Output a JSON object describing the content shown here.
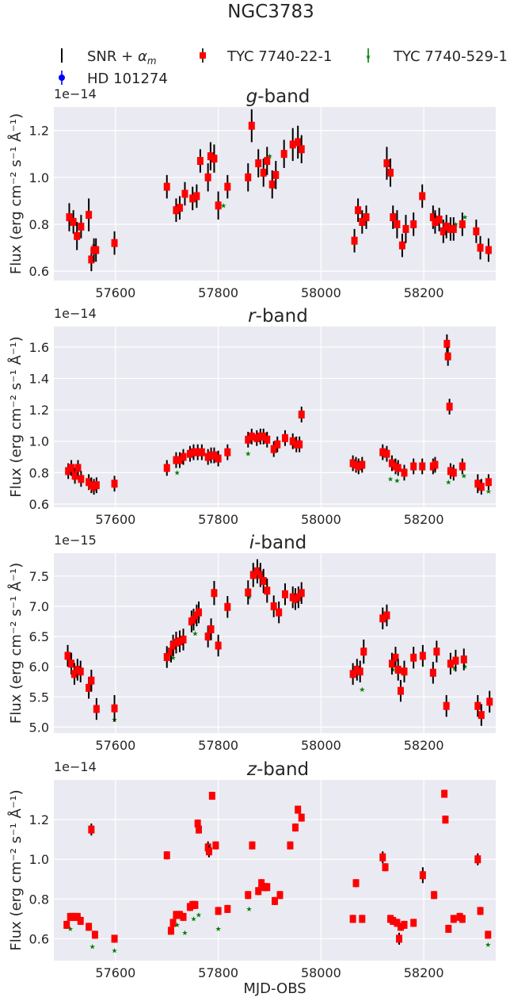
{
  "figure": {
    "title": "NGC3783",
    "xlabel": "MJD-OBS",
    "legend": [
      {
        "label": "SNR + α_m",
        "color": "#000000",
        "marker": "errorbar-line"
      },
      {
        "label": "TYC 7740-22-1",
        "color": "#ff0000",
        "marker": "square"
      },
      {
        "label": "TYC 7740-529-1",
        "color": "#008000",
        "marker": "star"
      },
      {
        "label": "HD 101274",
        "color": "#0000ff",
        "marker": "circle"
      }
    ],
    "colors": {
      "background": "#eaeaf2",
      "grid": "#ffffff",
      "snr": "#000000",
      "tyc22": "#ff0000",
      "tyc529": "#008000"
    }
  },
  "chart_data": [
    {
      "type": "scatter",
      "band": "g",
      "title": "g-band",
      "ylabel": "Flux (erg cm⁻² s⁻¹ Å⁻¹)",
      "exponent": "1e−14",
      "xlim": [
        57480,
        58340
      ],
      "ylim": [
        0.56,
        1.3
      ],
      "xticks": [
        57600,
        57800,
        58000,
        58200
      ],
      "yticks": [
        0.6,
        0.8,
        1.0,
        1.2
      ],
      "grid": true,
      "x": [
        57510,
        57518,
        57525,
        57533,
        57548,
        57553,
        57558,
        57562,
        57598,
        57700,
        57718,
        57725,
        57735,
        57750,
        57758,
        57765,
        57780,
        57785,
        57792,
        57800,
        57818,
        57858,
        57865,
        57878,
        57888,
        57895,
        57905,
        57912,
        57928,
        57945,
        57955,
        57962,
        58065,
        58072,
        58080,
        58088,
        58128,
        58135,
        58140,
        58148,
        58158,
        58165,
        58180,
        58197,
        58218,
        58222,
        58230,
        58238,
        58244,
        58252,
        58258,
        58275,
        58302,
        58310,
        58326
      ],
      "y": [
        0.83,
        0.81,
        0.75,
        0.79,
        0.84,
        0.65,
        0.69,
        0.69,
        0.72,
        0.96,
        0.86,
        0.87,
        0.93,
        0.91,
        0.92,
        1.07,
        1.0,
        1.09,
        1.08,
        0.88,
        0.96,
        1.0,
        1.22,
        1.06,
        1.02,
        1.07,
        0.97,
        1.01,
        1.1,
        1.14,
        1.15,
        1.12,
        0.73,
        0.86,
        0.81,
        0.83,
        1.06,
        1.02,
        0.83,
        0.8,
        0.71,
        0.78,
        0.8,
        0.92,
        0.83,
        0.81,
        0.82,
        0.77,
        0.79,
        0.78,
        0.78,
        0.8,
        0.77,
        0.7,
        0.69
      ],
      "yerr": [
        0.06,
        0.05,
        0.06,
        0.05,
        0.07,
        0.05,
        0.05,
        0.05,
        0.05,
        0.05,
        0.05,
        0.05,
        0.05,
        0.05,
        0.05,
        0.05,
        0.06,
        0.06,
        0.06,
        0.06,
        0.05,
        0.06,
        0.07,
        0.06,
        0.06,
        0.06,
        0.06,
        0.06,
        0.06,
        0.07,
        0.07,
        0.06,
        0.05,
        0.05,
        0.05,
        0.05,
        0.07,
        0.06,
        0.05,
        0.06,
        0.05,
        0.06,
        0.05,
        0.05,
        0.05,
        0.05,
        0.05,
        0.05,
        0.05,
        0.05,
        0.05,
        0.05,
        0.05,
        0.05,
        0.05
      ],
      "green": [
        [
          57558,
          0.71
        ],
        [
          57722,
          0.87
        ],
        [
          57810,
          0.88
        ],
        [
          57900,
          1.09
        ],
        [
          58142,
          0.84
        ],
        [
          58242,
          0.8
        ],
        [
          58262,
          0.8
        ],
        [
          58280,
          0.83
        ]
      ]
    },
    {
      "type": "scatter",
      "band": "r",
      "title": "r-band",
      "ylabel": "Flux (erg cm⁻² s⁻¹ Å⁻¹)",
      "exponent": "1e−14",
      "xlim": [
        57480,
        58340
      ],
      "ylim": [
        0.58,
        1.73
      ],
      "xticks": [
        57600,
        57800,
        58000,
        58200
      ],
      "yticks": [
        0.6,
        0.8,
        1.0,
        1.2,
        1.4,
        1.6
      ],
      "grid": true,
      "x": [
        57508,
        57514,
        57521,
        57527,
        57533,
        57548,
        57553,
        57558,
        57563,
        57598,
        57700,
        57718,
        57725,
        57732,
        57745,
        57752,
        57760,
        57768,
        57780,
        57786,
        57792,
        57800,
        57818,
        57858,
        57865,
        57875,
        57882,
        57888,
        57895,
        57908,
        57915,
        57930,
        57945,
        57952,
        57958,
        57962,
        58062,
        58068,
        58073,
        58080,
        58120,
        58128,
        58138,
        58145,
        58150,
        58162,
        58180,
        58197,
        58218,
        58222,
        58245,
        58247,
        58250,
        58252,
        58258,
        58275,
        58305,
        58312,
        58326
      ],
      "y": [
        0.81,
        0.83,
        0.78,
        0.83,
        0.76,
        0.74,
        0.72,
        0.71,
        0.72,
        0.73,
        0.83,
        0.88,
        0.88,
        0.9,
        0.92,
        0.93,
        0.93,
        0.93,
        0.9,
        0.91,
        0.91,
        0.89,
        0.93,
        1.01,
        1.03,
        1.02,
        1.03,
        1.03,
        1.01,
        0.95,
        0.98,
        1.02,
        1.0,
        0.98,
        0.98,
        1.17,
        0.86,
        0.85,
        0.84,
        0.85,
        0.93,
        0.92,
        0.86,
        0.84,
        0.83,
        0.8,
        0.84,
        0.84,
        0.84,
        0.85,
        1.62,
        1.54,
        1.22,
        0.81,
        0.8,
        0.84,
        0.73,
        0.71,
        0.74
      ],
      "yerr": [
        0.05,
        0.05,
        0.05,
        0.05,
        0.05,
        0.05,
        0.05,
        0.05,
        0.05,
        0.05,
        0.05,
        0.05,
        0.05,
        0.05,
        0.05,
        0.05,
        0.05,
        0.05,
        0.05,
        0.05,
        0.05,
        0.05,
        0.05,
        0.05,
        0.05,
        0.05,
        0.05,
        0.05,
        0.05,
        0.05,
        0.05,
        0.05,
        0.05,
        0.05,
        0.05,
        0.05,
        0.05,
        0.05,
        0.05,
        0.05,
        0.05,
        0.05,
        0.05,
        0.05,
        0.05,
        0.05,
        0.05,
        0.05,
        0.05,
        0.05,
        0.06,
        0.06,
        0.05,
        0.05,
        0.05,
        0.05,
        0.06,
        0.05,
        0.05
      ],
      "green": [
        [
          57556,
          0.69
        ],
        [
          57720,
          0.8
        ],
        [
          57858,
          0.92
        ],
        [
          58135,
          0.76
        ],
        [
          58148,
          0.75
        ],
        [
          58248,
          0.74
        ],
        [
          58278,
          0.78
        ],
        [
          58326,
          0.68
        ]
      ]
    },
    {
      "type": "scatter",
      "band": "i",
      "title": "i-band",
      "ylabel": "Flux (erg cm⁻² s⁻¹ Å⁻¹)",
      "exponent": "1e−15",
      "xlim": [
        57480,
        58340
      ],
      "ylim": [
        4.9,
        7.88
      ],
      "xticks": [
        57600,
        57800,
        58000,
        58200
      ],
      "yticks": [
        5.0,
        5.5,
        6.0,
        6.5,
        7.0,
        7.5
      ],
      "grid": true,
      "x": [
        57507,
        57514,
        57520,
        57526,
        57532,
        57548,
        57553,
        57563,
        57598,
        57700,
        57708,
        57712,
        57718,
        57725,
        57732,
        57748,
        57752,
        57758,
        57762,
        57780,
        57786,
        57792,
        57800,
        57818,
        57858,
        57868,
        57876,
        57882,
        57888,
        57895,
        57908,
        57918,
        57930,
        57945,
        57950,
        57956,
        57962,
        58062,
        58070,
        58076,
        58083,
        58120,
        58128,
        58138,
        58145,
        58150,
        58155,
        58162,
        58180,
        58198,
        58218,
        58225,
        58244,
        58252,
        58262,
        58278,
        58305,
        58312,
        58328
      ],
      "y": [
        6.18,
        6.05,
        5.88,
        5.95,
        5.92,
        5.65,
        5.77,
        5.3,
        5.31,
        6.16,
        6.25,
        6.35,
        6.4,
        6.42,
        6.45,
        6.75,
        6.78,
        6.85,
        6.9,
        6.5,
        6.62,
        7.22,
        6.35,
        6.99,
        7.23,
        7.52,
        7.58,
        7.52,
        7.42,
        7.26,
        7.0,
        6.9,
        7.2,
        7.15,
        7.12,
        7.15,
        7.22,
        5.88,
        5.95,
        5.92,
        6.25,
        6.8,
        6.85,
        6.05,
        6.15,
        5.95,
        5.6,
        5.92,
        6.15,
        6.18,
        5.9,
        6.25,
        5.35,
        6.05,
        6.1,
        6.12,
        5.35,
        5.2,
        5.42
      ],
      "yerr": [
        0.18,
        0.18,
        0.18,
        0.18,
        0.18,
        0.18,
        0.18,
        0.18,
        0.22,
        0.18,
        0.18,
        0.18,
        0.18,
        0.18,
        0.18,
        0.18,
        0.18,
        0.18,
        0.18,
        0.18,
        0.18,
        0.2,
        0.18,
        0.18,
        0.2,
        0.2,
        0.2,
        0.2,
        0.2,
        0.2,
        0.18,
        0.18,
        0.18,
        0.18,
        0.18,
        0.18,
        0.18,
        0.18,
        0.18,
        0.18,
        0.2,
        0.18,
        0.18,
        0.18,
        0.18,
        0.18,
        0.18,
        0.18,
        0.18,
        0.18,
        0.18,
        0.18,
        0.18,
        0.18,
        0.18,
        0.18,
        0.18,
        0.18,
        0.18
      ],
      "green": [
        [
          57598,
          5.12
        ],
        [
          57712,
          6.15
        ],
        [
          57755,
          6.55
        ],
        [
          57860,
          7.15
        ],
        [
          58080,
          5.62
        ],
        [
          58140,
          5.95
        ],
        [
          58260,
          5.97
        ],
        [
          58280,
          6.0
        ]
      ]
    },
    {
      "type": "scatter",
      "band": "z",
      "title": "z-band",
      "ylabel": "Flux (erg cm⁻² s⁻¹ Å⁻¹)",
      "exponent": "1e−14",
      "xlim": [
        57480,
        58340
      ],
      "ylim": [
        0.49,
        1.4
      ],
      "xticks": [
        57600,
        57800,
        58000,
        58200
      ],
      "yticks": [
        0.6,
        0.8,
        1.0,
        1.2
      ],
      "grid": true,
      "x": [
        57505,
        57512,
        57518,
        57526,
        57532,
        57548,
        57553,
        57560,
        57598,
        57700,
        57708,
        57712,
        57718,
        57725,
        57732,
        57745,
        57750,
        57755,
        57760,
        57762,
        57780,
        57782,
        57788,
        57795,
        57800,
        57818,
        57858,
        57866,
        57878,
        57884,
        57890,
        57895,
        57910,
        57920,
        57940,
        57950,
        57955,
        57962,
        58062,
        58068,
        58080,
        58120,
        58125,
        58135,
        58140,
        58148,
        58152,
        58155,
        58162,
        58180,
        58198,
        58220,
        58240,
        58242,
        58248,
        58258,
        58270,
        58275,
        58305,
        58310,
        58325
      ],
      "y": [
        0.67,
        0.71,
        0.71,
        0.71,
        0.69,
        0.66,
        1.15,
        0.62,
        0.6,
        1.02,
        0.64,
        0.68,
        0.72,
        0.72,
        0.71,
        0.76,
        0.77,
        0.77,
        1.18,
        1.15,
        1.06,
        1.04,
        1.32,
        1.07,
        0.74,
        0.75,
        0.82,
        1.07,
        0.84,
        0.88,
        0.86,
        0.86,
        0.79,
        0.82,
        1.07,
        1.16,
        1.25,
        1.21,
        0.7,
        0.88,
        0.7,
        1.01,
        0.96,
        0.7,
        0.69,
        0.68,
        0.6,
        0.66,
        0.67,
        0.68,
        0.92,
        0.82,
        1.33,
        1.2,
        0.65,
        0.7,
        0.71,
        0.7,
        1.0,
        0.74,
        0.62
      ],
      "yerr": [
        0.02,
        0.02,
        0.02,
        0.02,
        0.02,
        0.02,
        0.03,
        0.02,
        0.02,
        0.02,
        0.02,
        0.02,
        0.02,
        0.02,
        0.02,
        0.02,
        0.02,
        0.02,
        0.02,
        0.02,
        0.03,
        0.03,
        0.02,
        0.02,
        0.02,
        0.02,
        0.02,
        0.02,
        0.02,
        0.02,
        0.02,
        0.02,
        0.02,
        0.02,
        0.02,
        0.02,
        0.02,
        0.02,
        0.02,
        0.02,
        0.02,
        0.03,
        0.02,
        0.02,
        0.02,
        0.02,
        0.03,
        0.02,
        0.02,
        0.02,
        0.04,
        0.02,
        0.02,
        0.02,
        0.02,
        0.02,
        0.02,
        0.02,
        0.03,
        0.02,
        0.02
      ],
      "green": [
        [
          57512,
          0.65
        ],
        [
          57555,
          0.56
        ],
        [
          57598,
          0.54
        ],
        [
          57720,
          0.67
        ],
        [
          57735,
          0.63
        ],
        [
          57752,
          0.7
        ],
        [
          57762,
          0.72
        ],
        [
          57800,
          0.65
        ],
        [
          57860,
          0.75
        ],
        [
          58325,
          0.57
        ]
      ]
    }
  ]
}
